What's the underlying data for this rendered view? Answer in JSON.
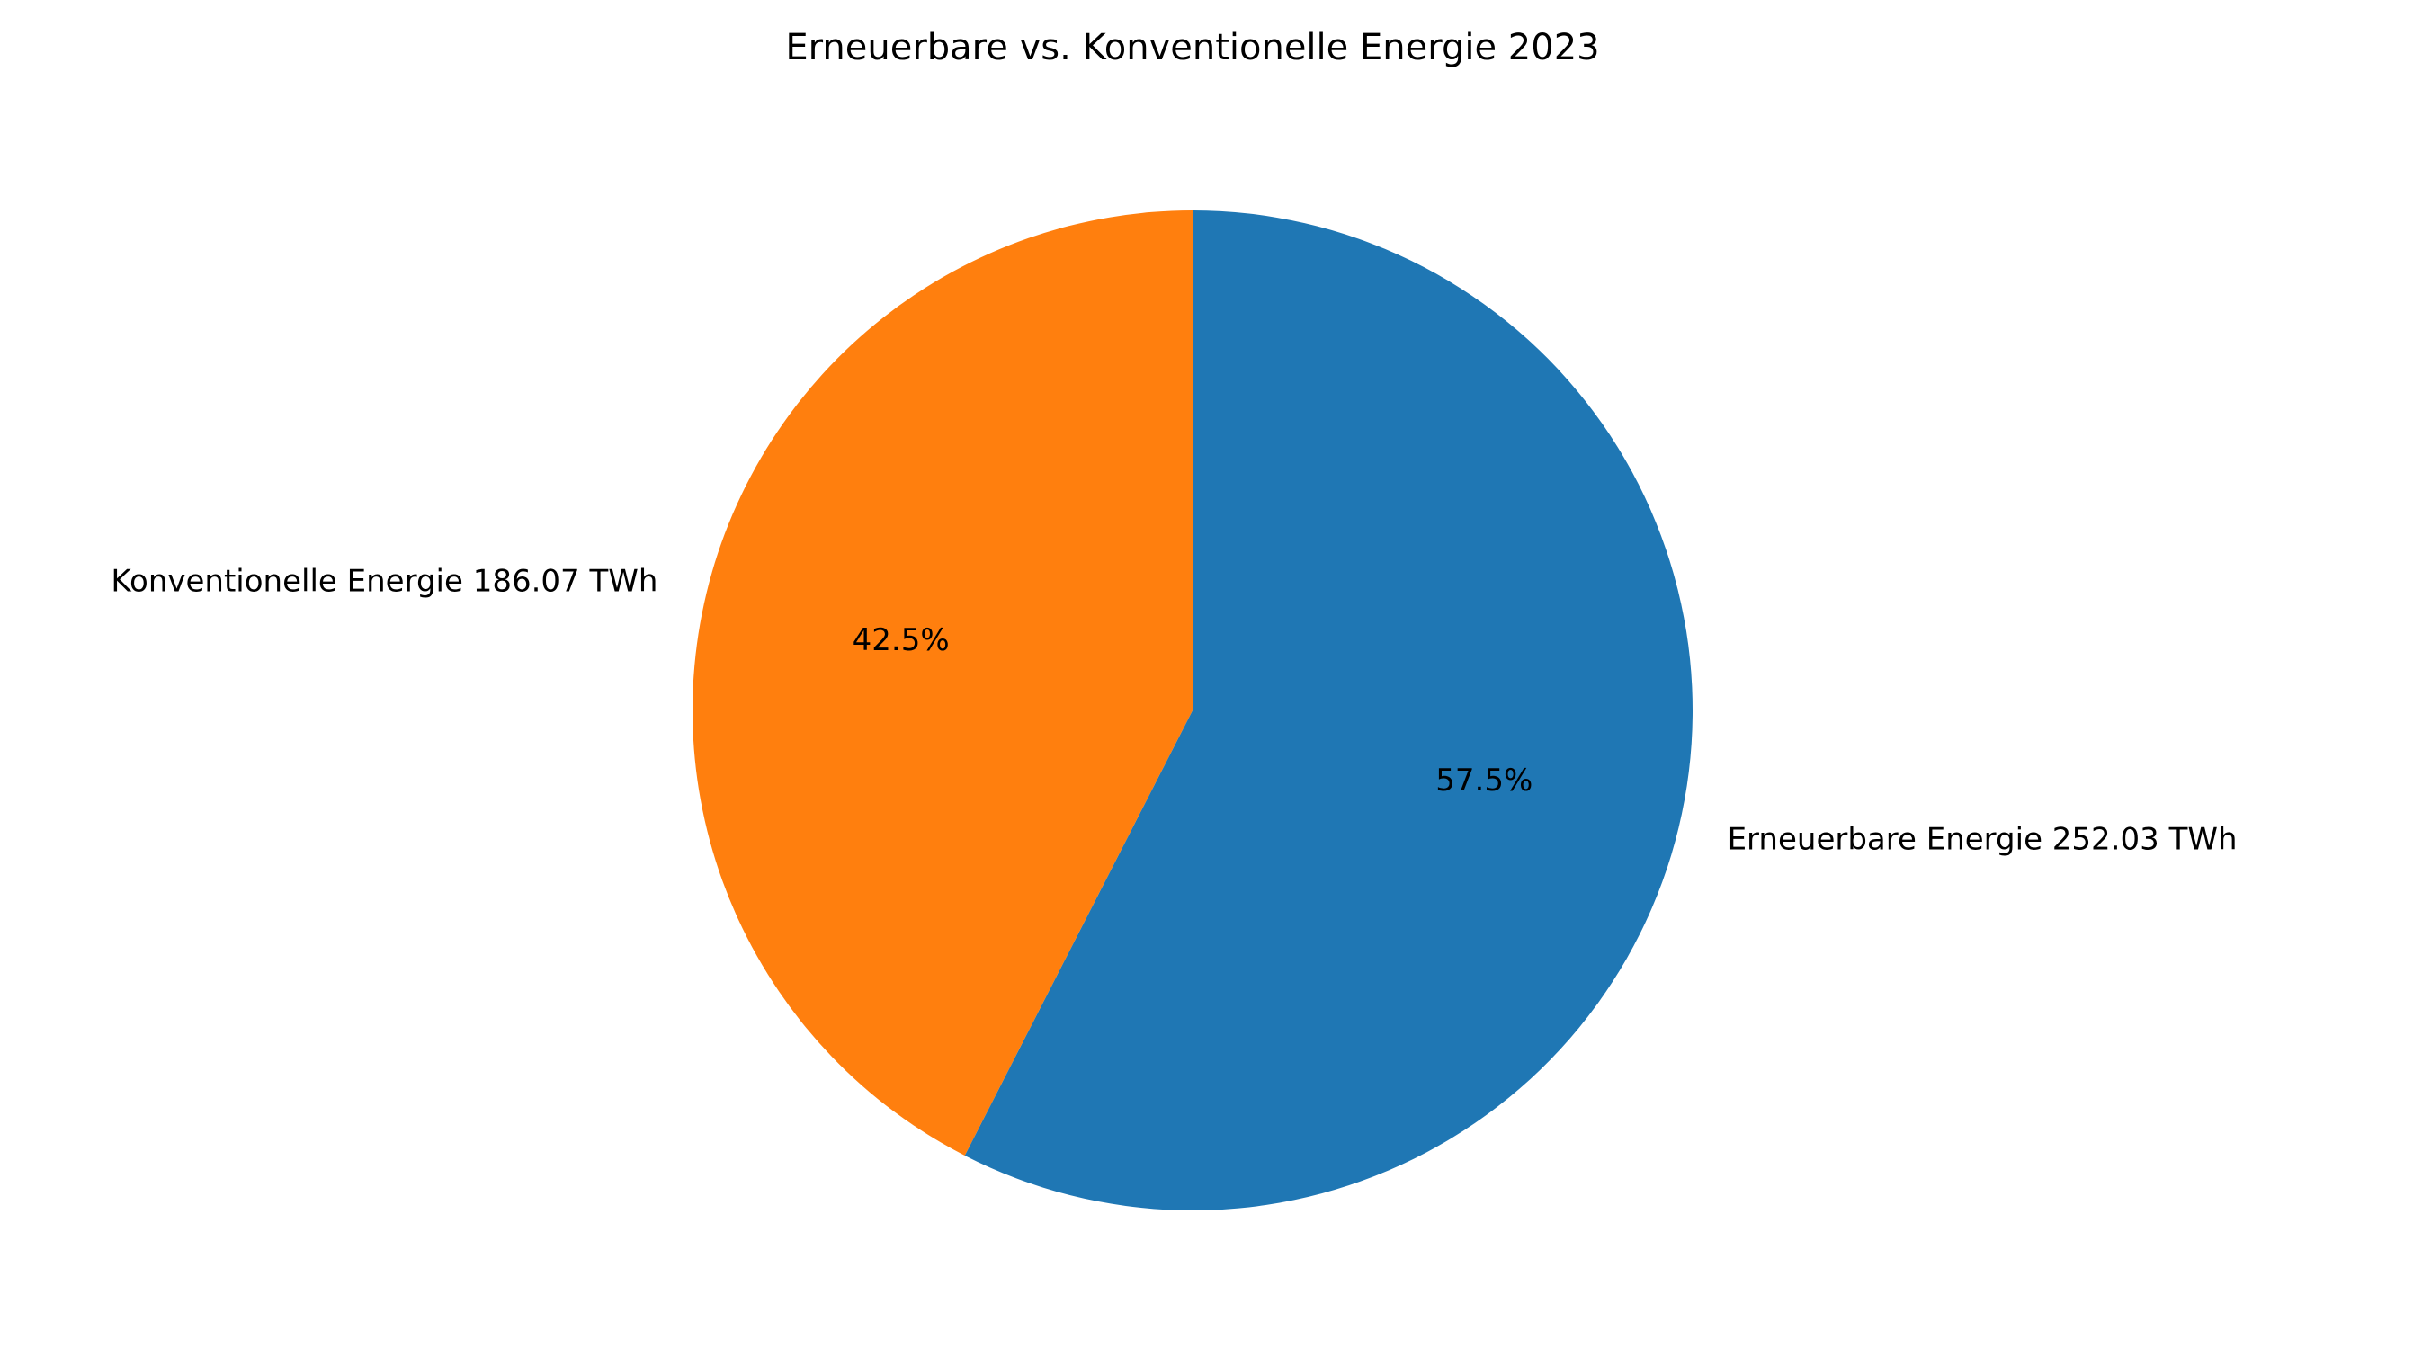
{
  "chart_data": {
    "type": "pie",
    "title": "Erneuerbare vs. Konventionelle Energie 2023",
    "start_angle_deg": 90,
    "direction": "clockwise",
    "slices": [
      {
        "label": "Erneuerbare Energie 252.03 TWh",
        "value": 252.03,
        "percent_label": "57.5%",
        "color": "#1f77b4"
      },
      {
        "label": "Konventionelle Energie 186.07 TWh",
        "value": 186.07,
        "percent_label": "42.5%",
        "color": "#ff7f0e"
      }
    ]
  }
}
